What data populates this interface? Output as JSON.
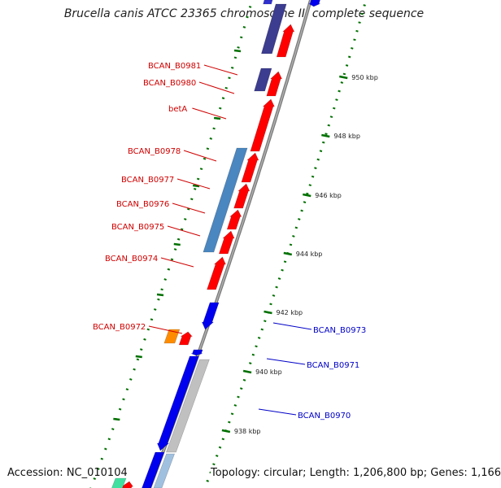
{
  "title": "Brucella canis ATCC 23365 chromosome II, complete sequence",
  "footer": {
    "accession": "Accession: NC_010104",
    "summary": "Topology: circular; Length: 1,206,800 bp; Genes: 1,166"
  },
  "colors": {
    "left_label": "#d00000",
    "right_label": "#0000c8",
    "red_gene": "#ff0000",
    "blue_gene": "#0000ee",
    "steel_gene": "#4a86c0",
    "grey_gene": "#c0c0c0",
    "navy_gene": "#3c3c90",
    "orange_gene": "#ff8c00",
    "tick": "#007000"
  },
  "kbp_ticks": [
    "950 kbp",
    "948 kbp",
    "946 kbp",
    "944 kbp",
    "942 kbp",
    "940 kbp",
    "938 kbp"
  ],
  "left_labels": [
    "BCAN_B0981",
    "BCAN_B0980",
    "betA",
    "BCAN_B0978",
    "BCAN_B0977",
    "BCAN_B0976",
    "BCAN_B0975",
    "BCAN_B0974",
    "BCAN_B0972"
  ],
  "right_labels": [
    "BCAN_B0973",
    "BCAN_B0971",
    "BCAN_B0970"
  ]
}
